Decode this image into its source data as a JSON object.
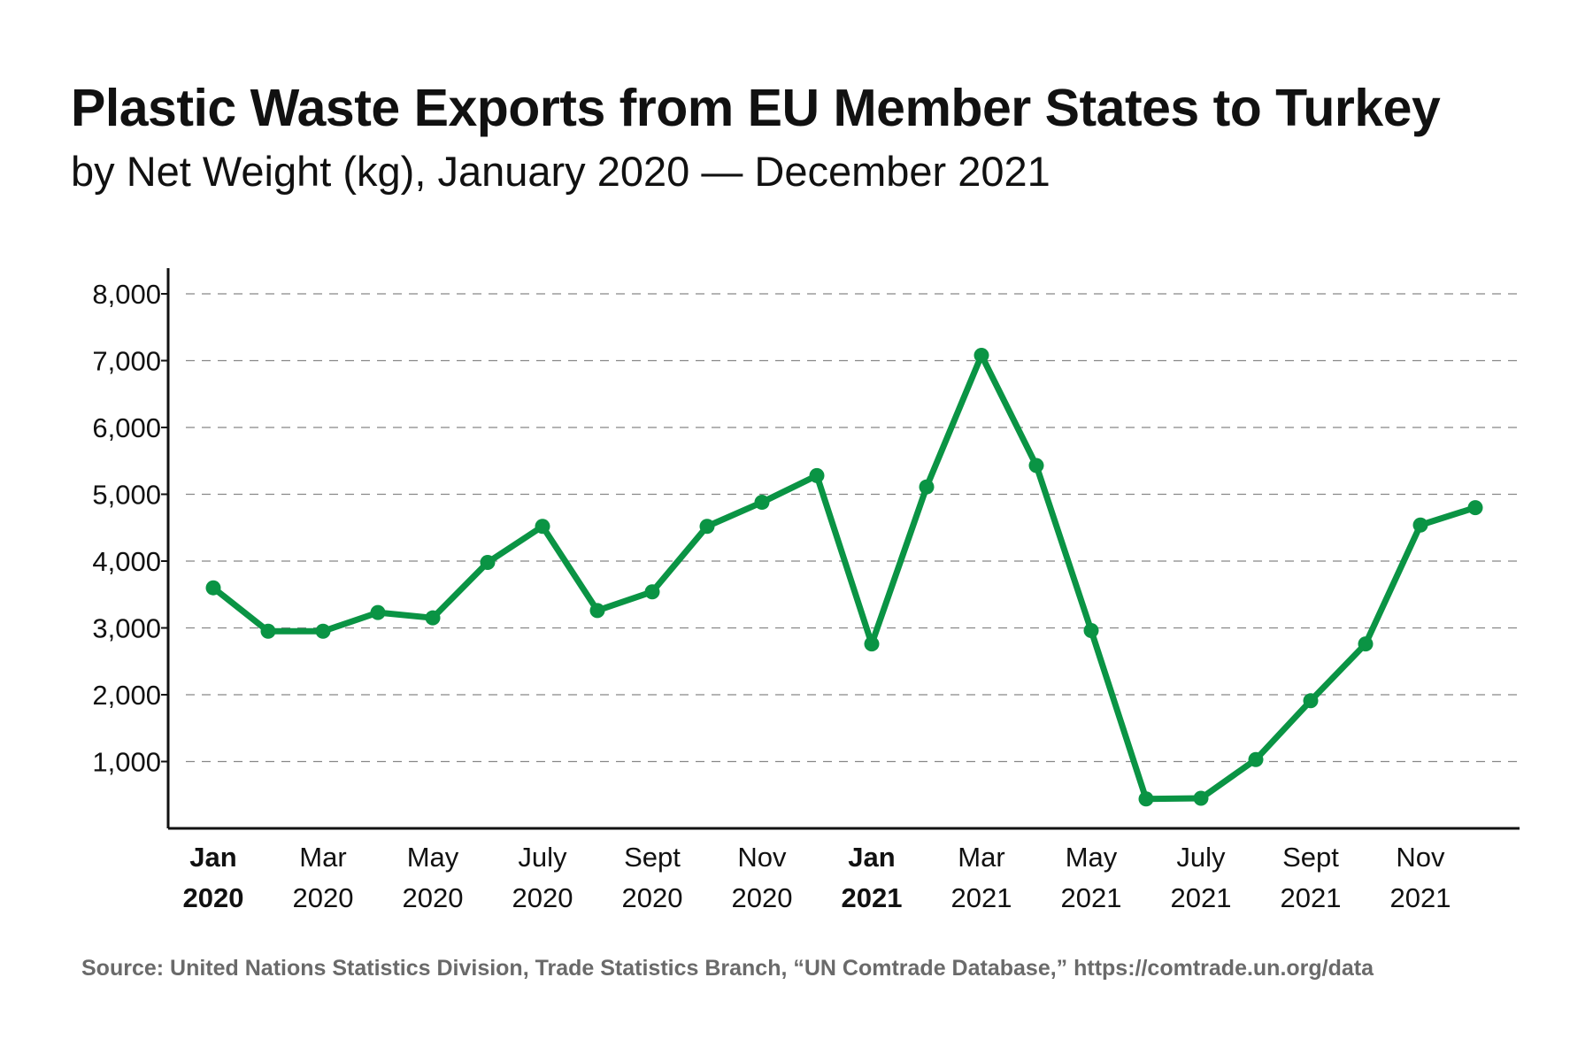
{
  "chart_data": {
    "type": "line",
    "title": "Plastic Waste Exports from EU Member States to Turkey",
    "subtitle": "by Net Weight (kg), January 2020 — December 2021",
    "source": "Source: United Nations Statistics Division, Trade Statistics Branch, “UN Comtrade Database,” https://comtrade.un.org/data",
    "xlabel": "",
    "ylabel": "",
    "ylim": [
      0,
      8000
    ],
    "y_ticks": [
      "1,000",
      "2,000",
      "3,000",
      "4,000",
      "5,000",
      "6,000",
      "7,000",
      "8,000"
    ],
    "y_tick_values": [
      1000,
      2000,
      3000,
      4000,
      5000,
      6000,
      7000,
      8000
    ],
    "grid": "horizontal dashed",
    "x": [
      "Jan 2020",
      "Feb 2020",
      "Mar 2020",
      "Apr 2020",
      "May 2020",
      "Jun 2020",
      "Jul 2020",
      "Aug 2020",
      "Sep 2020",
      "Oct 2020",
      "Nov 2020",
      "Dec 2020",
      "Jan 2021",
      "Feb 2021",
      "Mar 2021",
      "Apr 2021",
      "May 2021",
      "Jun 2021",
      "Jul 2021",
      "Aug 2021",
      "Sep 2021",
      "Oct 2021",
      "Nov 2021",
      "Dec 2021"
    ],
    "x_ticks": [
      {
        "index": 0,
        "month": "Jan",
        "year": "2020",
        "bold": true
      },
      {
        "index": 2,
        "month": "Mar",
        "year": "2020",
        "bold": false
      },
      {
        "index": 4,
        "month": "May",
        "year": "2020",
        "bold": false
      },
      {
        "index": 6,
        "month": "July",
        "year": "2020",
        "bold": false
      },
      {
        "index": 8,
        "month": "Sept",
        "year": "2020",
        "bold": false
      },
      {
        "index": 10,
        "month": "Nov",
        "year": "2020",
        "bold": false
      },
      {
        "index": 12,
        "month": "Jan",
        "year": "2021",
        "bold": true
      },
      {
        "index": 14,
        "month": "Mar",
        "year": "2021",
        "bold": false
      },
      {
        "index": 16,
        "month": "May",
        "year": "2021",
        "bold": false
      },
      {
        "index": 18,
        "month": "July",
        "year": "2021",
        "bold": false
      },
      {
        "index": 20,
        "month": "Sept",
        "year": "2021",
        "bold": false
      },
      {
        "index": 22,
        "month": "Nov",
        "year": "2021",
        "bold": false
      }
    ],
    "series": [
      {
        "name": "Net Weight (kg)",
        "color": "#0a9444",
        "values": [
          3600,
          2950,
          2950,
          3230,
          3150,
          3980,
          4520,
          3260,
          3540,
          4520,
          4880,
          5280,
          2760,
          5110,
          7080,
          5430,
          2960,
          440,
          450,
          1030,
          1910,
          2760,
          4540,
          4800
        ]
      }
    ]
  }
}
